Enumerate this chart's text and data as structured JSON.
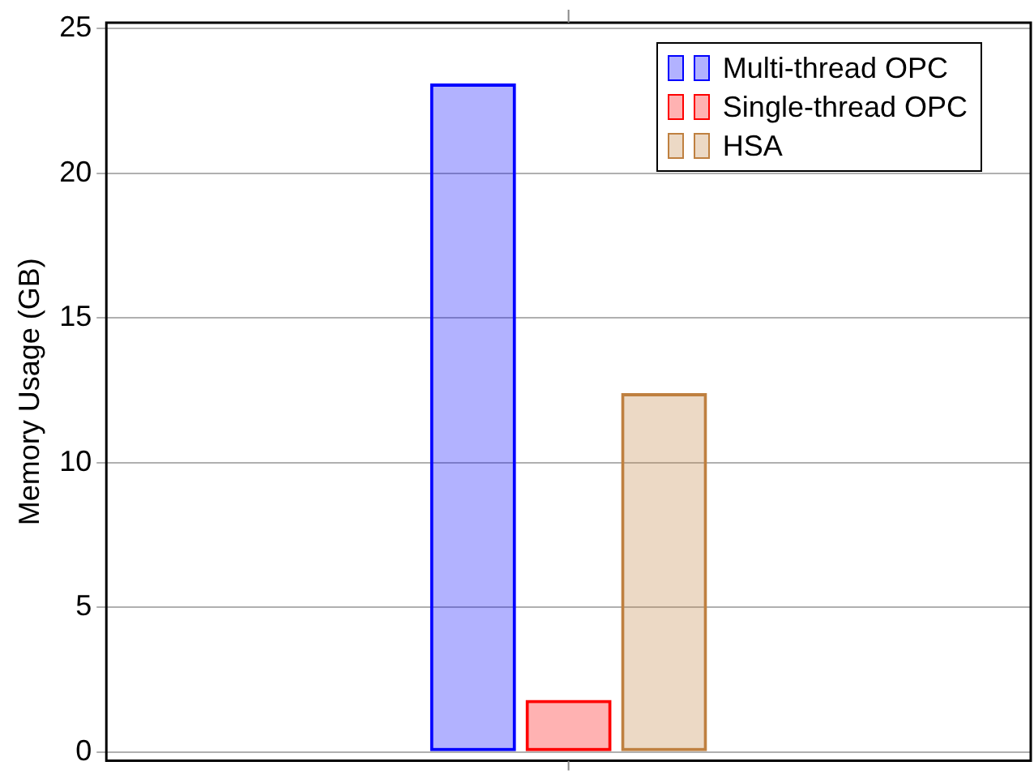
{
  "chart_data": {
    "type": "bar",
    "ylabel": "Memory Usage (GB)",
    "categories": [
      null
    ],
    "series": [
      {
        "name": "Multi-thread OPC",
        "color": "#0000ff",
        "values": [
          23.1
        ]
      },
      {
        "name": "Single-thread OPC",
        "color": "#ff0000",
        "values": [
          1.8
        ]
      },
      {
        "name": "HSA",
        "color": "#bf8040",
        "values": [
          12.4
        ]
      }
    ],
    "ylim": [
      -0.3,
      25.2
    ],
    "yticks": [
      0,
      5,
      10,
      15,
      20,
      25
    ],
    "grid": "y",
    "legend": "top right",
    "tick_labels": "y"
  }
}
